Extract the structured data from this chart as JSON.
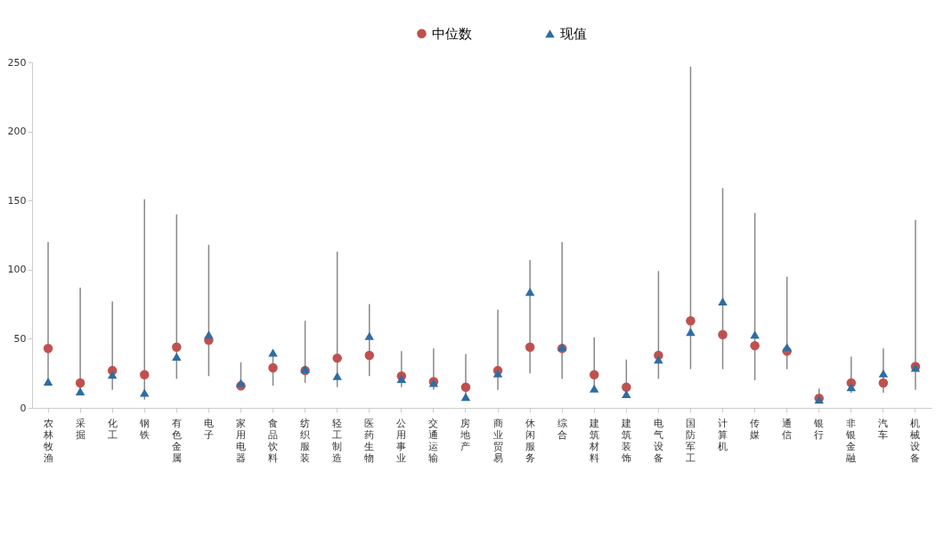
{
  "chart_data": {
    "type": "scatter",
    "categories": [
      "农林牧渔",
      "采掘",
      "化工",
      "钢铁",
      "有色金属",
      "电子",
      "家用电器",
      "食品饮料",
      "纺织服装",
      "轻工制造",
      "医药生物",
      "公用事业",
      "交通运输",
      "房地产",
      "商业贸易",
      "休闲服务",
      "综合",
      "建筑材料",
      "建筑装饰",
      "电气设备",
      "国防军工",
      "计算机",
      "传媒",
      "通信",
      "银行",
      "非银金融",
      "汽车",
      "机械设备"
    ],
    "series": [
      {
        "name": "中位数",
        "color": "#c0504d",
        "marker": "circle",
        "values": [
          43,
          18,
          27,
          24,
          44,
          49,
          16,
          29,
          27,
          36,
          38,
          23,
          19,
          15,
          27,
          44,
          43,
          24,
          15,
          38,
          63,
          53,
          45,
          41,
          7,
          18,
          18,
          30
        ],
        "errors": [
          [
            18,
            120
          ],
          [
            10,
            87
          ],
          [
            13,
            77
          ],
          [
            6,
            151
          ],
          [
            21,
            140
          ],
          [
            23,
            118
          ],
          [
            13,
            33
          ],
          [
            16,
            42
          ],
          [
            18,
            63
          ],
          [
            15,
            113
          ],
          [
            23,
            75
          ],
          [
            15,
            41
          ],
          [
            13,
            43
          ],
          [
            7,
            39
          ],
          [
            13,
            71
          ],
          [
            25,
            107
          ],
          [
            21,
            120
          ],
          [
            12,
            51
          ],
          [
            8,
            35
          ],
          [
            21,
            99
          ],
          [
            28,
            247
          ],
          [
            28,
            159
          ],
          [
            20,
            141
          ],
          [
            28,
            95
          ],
          [
            4,
            14
          ],
          [
            11,
            37
          ],
          [
            11,
            43
          ],
          [
            13,
            136
          ]
        ]
      },
      {
        "name": "现值",
        "color": "#2e6da4",
        "marker": "triangle",
        "values": [
          19,
          12,
          24,
          11,
          37,
          53,
          18,
          40,
          28,
          23,
          52,
          21,
          18,
          8,
          25,
          84,
          44,
          14,
          10,
          35,
          55,
          77,
          53,
          44,
          6,
          15,
          25,
          29
        ]
      }
    ],
    "ylim": [
      0,
      250
    ],
    "yticks": [
      0,
      50,
      100,
      150,
      200,
      250
    ],
    "legend": "top"
  }
}
